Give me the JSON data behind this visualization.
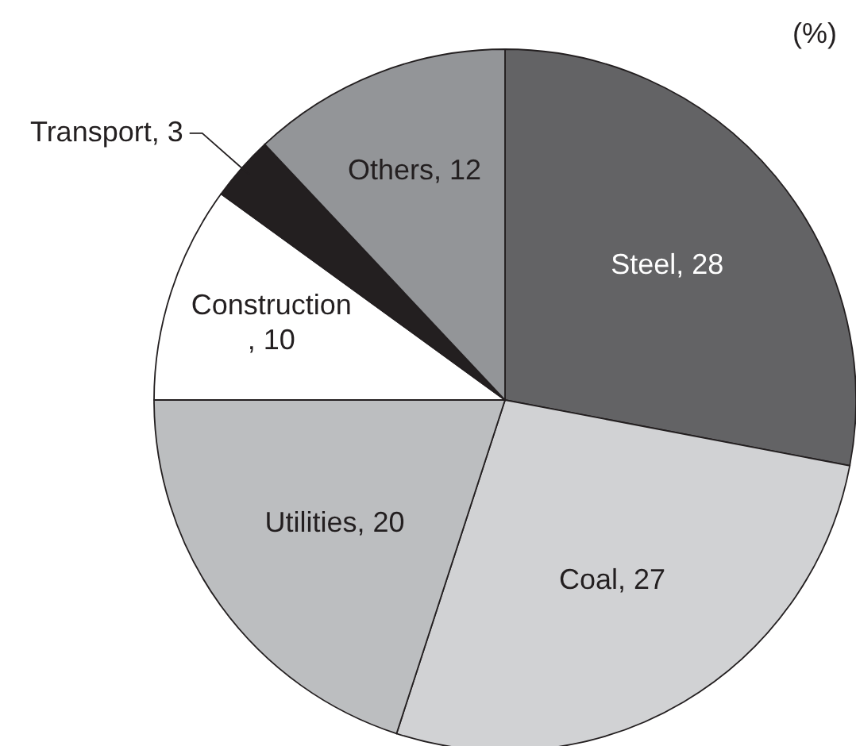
{
  "chart_data": {
    "type": "pie",
    "categories": [
      "Steel",
      "Coal",
      "Utilities",
      "Construction",
      "Transport",
      "Others"
    ],
    "values": [
      28,
      27,
      20,
      10,
      3,
      12
    ],
    "colors": [
      "#636365",
      "#d1d2d4",
      "#bcbec0",
      "#ffffff",
      "#231f20",
      "#939598"
    ],
    "value_labels": [
      ", 28",
      ", 27",
      ", 20",
      ", 10",
      ", 3",
      ", 12"
    ],
    "annotations": [
      "(%)"
    ]
  }
}
